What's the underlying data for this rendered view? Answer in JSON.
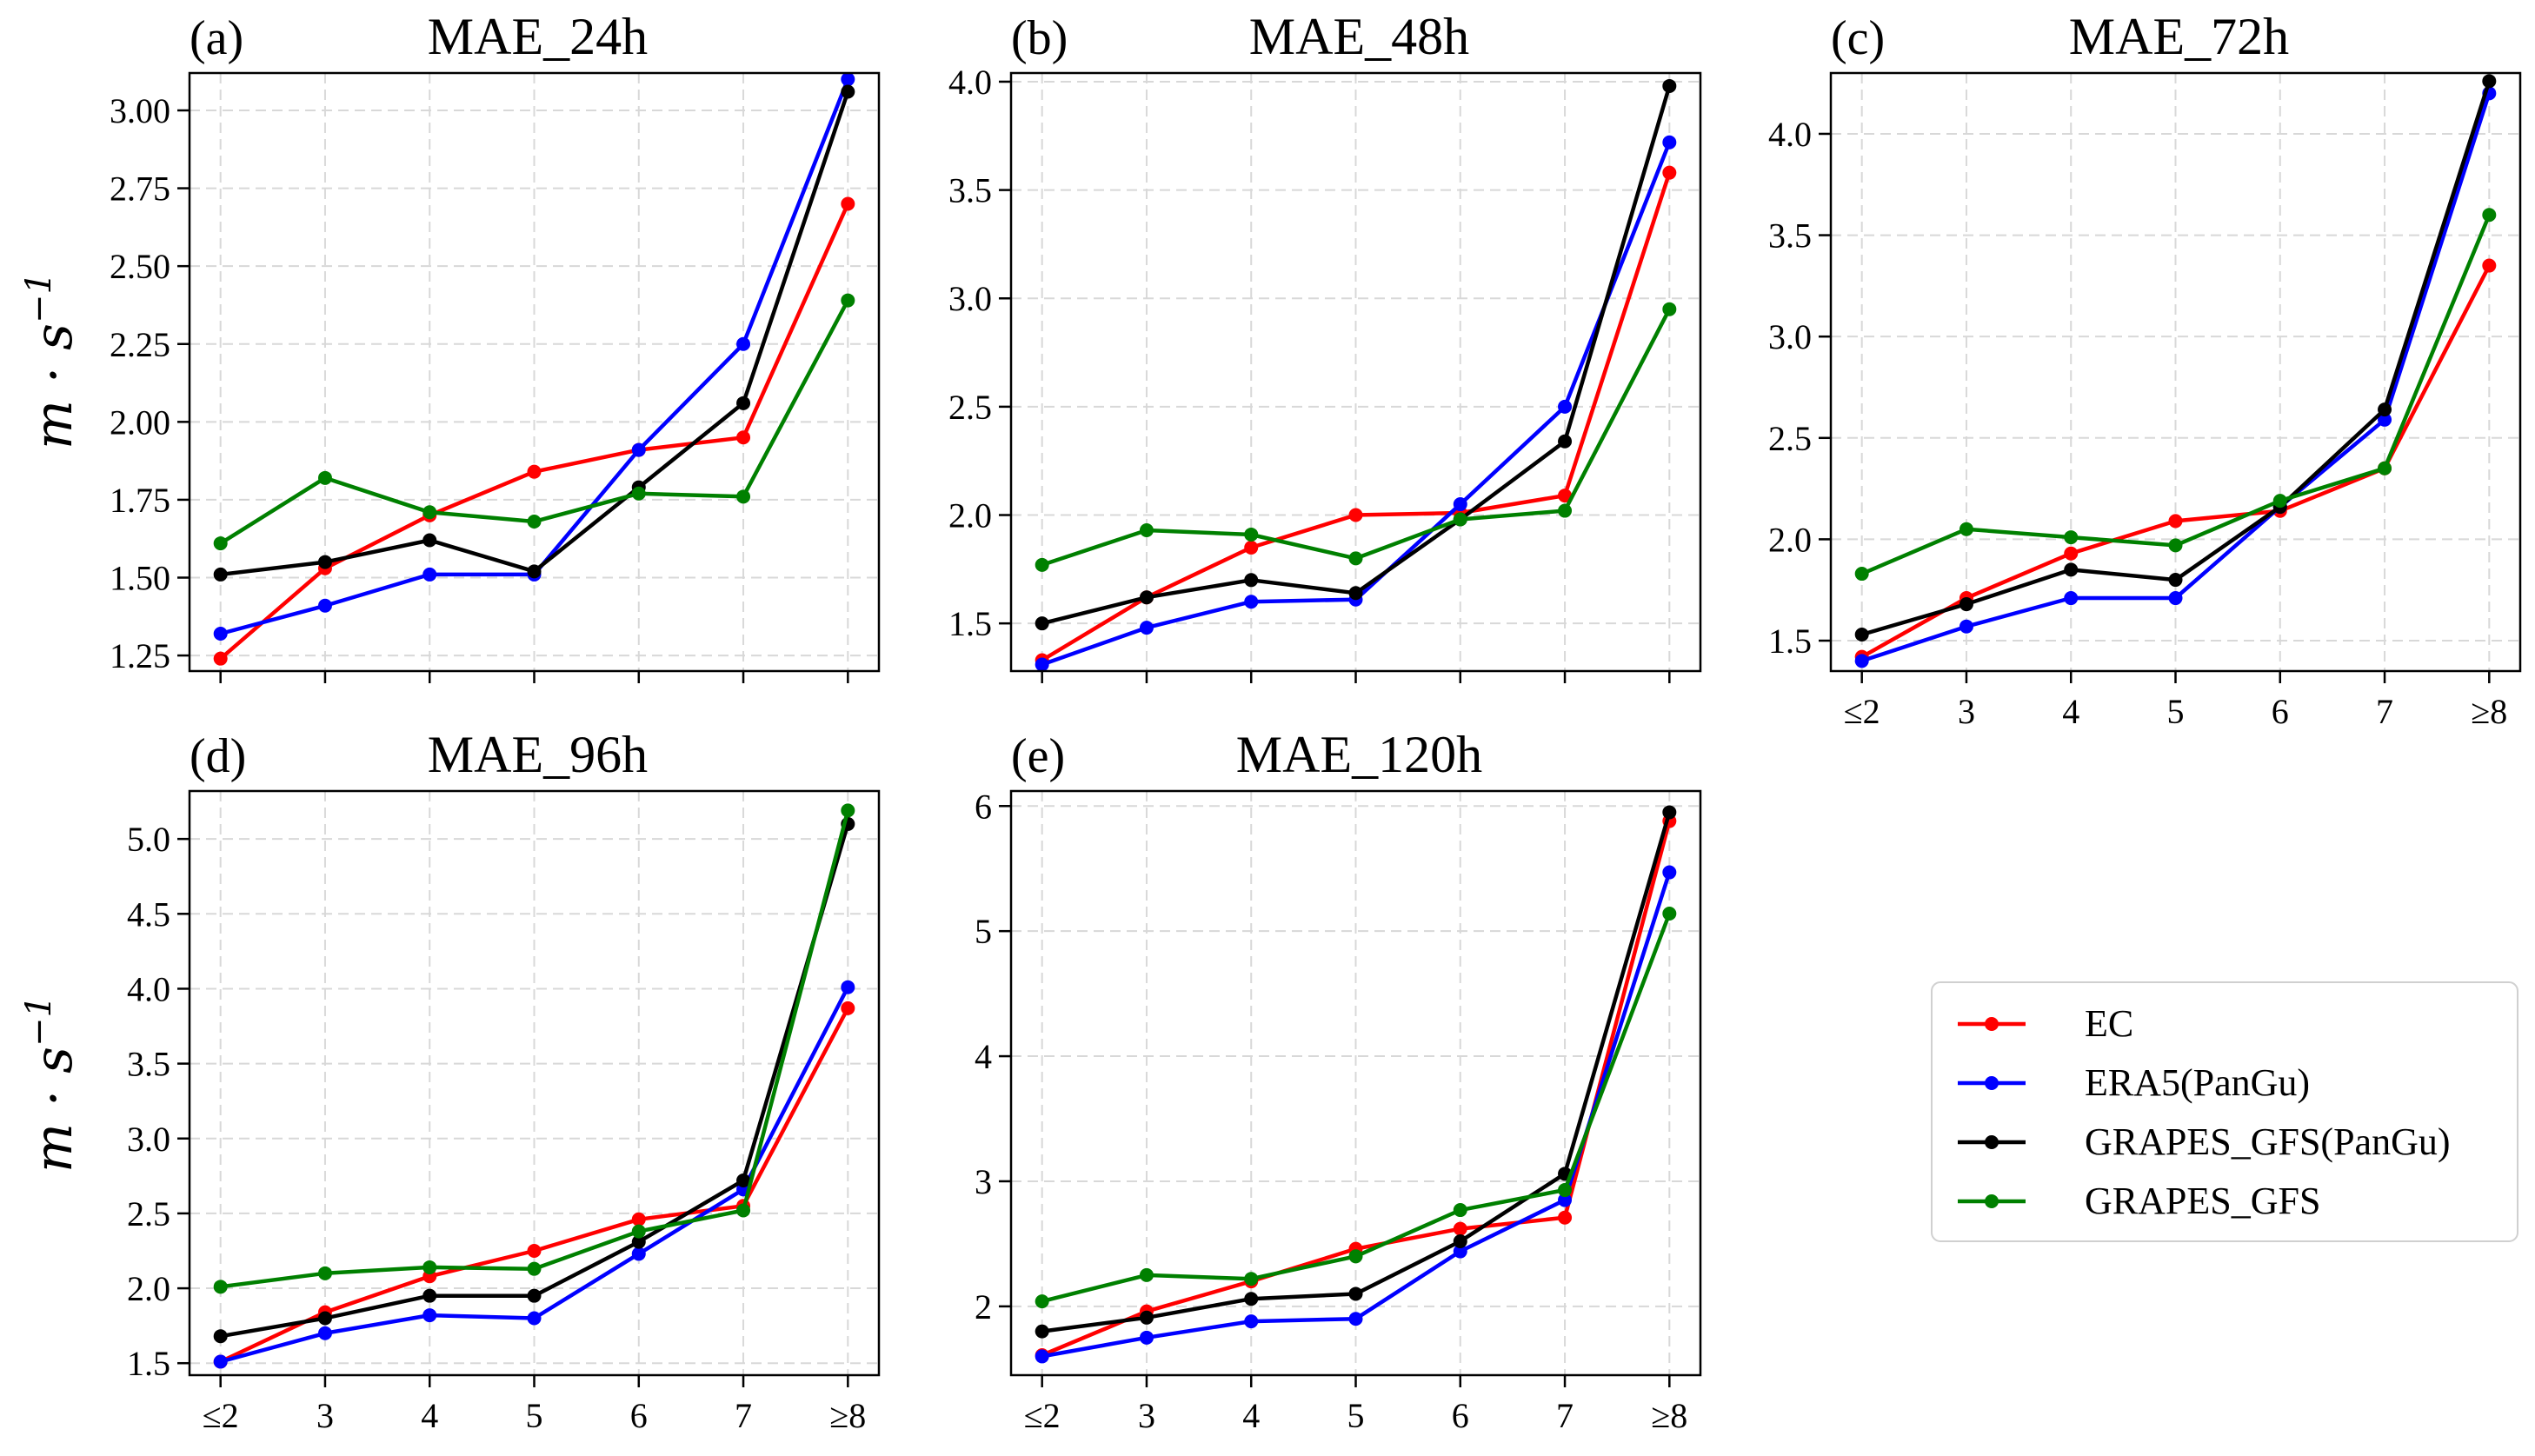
{
  "legend": {
    "placement": "lower-right",
    "entries": [
      {
        "name": "EC",
        "color": "#ff0000"
      },
      {
        "name": "ERA5(PanGu)",
        "color": "#0000ff"
      },
      {
        "name": "GRAPES_GFS(PanGu)",
        "color": "#000000"
      },
      {
        "name": "GRAPES_GFS",
        "color": "#008000"
      }
    ]
  },
  "ylabel": "m · s",
  "ylabel_sup": "−1",
  "chart_data": [
    {
      "type": "line",
      "panel": "(a)",
      "title": "MAE_24h",
      "categories": [
        "≤2",
        "3",
        "4",
        "5",
        "6",
        "7",
        "≥8"
      ],
      "show_xticklabels": false,
      "ylim": [
        1.2,
        3.12
      ],
      "yticks": [
        1.25,
        1.5,
        1.75,
        2.0,
        2.25,
        2.5,
        2.75,
        3.0
      ],
      "ytick_labels": [
        "1.25",
        "1.50",
        "1.75",
        "2.00",
        "2.25",
        "2.50",
        "2.75",
        "3.00"
      ],
      "grid": true,
      "series": [
        {
          "name": "EC",
          "color": "#ff0000",
          "values": [
            1.24,
            1.53,
            1.7,
            1.84,
            1.91,
            1.95,
            2.7
          ]
        },
        {
          "name": "ERA5(PanGu)",
          "color": "#0000ff",
          "values": [
            1.32,
            1.41,
            1.51,
            1.51,
            1.91,
            2.25,
            3.1
          ]
        },
        {
          "name": "GRAPES_GFS(PanGu)",
          "color": "#000000",
          "values": [
            1.51,
            1.55,
            1.62,
            1.52,
            1.79,
            2.06,
            3.06
          ]
        },
        {
          "name": "GRAPES_GFS",
          "color": "#008000",
          "values": [
            1.61,
            1.82,
            1.71,
            1.68,
            1.77,
            1.76,
            2.39
          ]
        }
      ]
    },
    {
      "type": "line",
      "panel": "(b)",
      "title": "MAE_48h",
      "categories": [
        "≤2",
        "3",
        "4",
        "5",
        "6",
        "7",
        "≥8"
      ],
      "show_xticklabels": false,
      "ylim": [
        1.28,
        4.04
      ],
      "yticks": [
        1.5,
        2.0,
        2.5,
        3.0,
        3.5,
        4.0
      ],
      "ytick_labels": [
        "1.5",
        "2.0",
        "2.5",
        "3.0",
        "3.5",
        "4.0"
      ],
      "grid": true,
      "series": [
        {
          "name": "EC",
          "color": "#ff0000",
          "values": [
            1.33,
            1.62,
            1.85,
            2.0,
            2.01,
            2.09,
            3.58
          ]
        },
        {
          "name": "ERA5(PanGu)",
          "color": "#0000ff",
          "values": [
            1.31,
            1.48,
            1.6,
            1.61,
            2.05,
            2.5,
            3.72
          ]
        },
        {
          "name": "GRAPES_GFS(PanGu)",
          "color": "#000000",
          "values": [
            1.5,
            1.62,
            1.7,
            1.64,
            1.98,
            2.34,
            3.98
          ]
        },
        {
          "name": "GRAPES_GFS",
          "color": "#008000",
          "values": [
            1.77,
            1.93,
            1.91,
            1.8,
            1.98,
            2.02,
            2.95
          ]
        }
      ]
    },
    {
      "type": "line",
      "panel": "(c)",
      "title": "MAE_72h",
      "categories": [
        "≤2",
        "3",
        "4",
        "5",
        "6",
        "7",
        "≥8"
      ],
      "show_xticklabels": true,
      "ylim": [
        1.35,
        4.3
      ],
      "yticks": [
        1.5,
        2.0,
        2.5,
        3.0,
        3.5,
        4.0
      ],
      "ytick_labels": [
        "1.5",
        "2.0",
        "2.5",
        "3.0",
        "3.5",
        "4.0"
      ],
      "grid": true,
      "series": [
        {
          "name": "EC",
          "color": "#ff0000",
          "values": [
            1.42,
            1.71,
            1.93,
            2.09,
            2.14,
            2.35,
            3.35
          ]
        },
        {
          "name": "ERA5(PanGu)",
          "color": "#0000ff",
          "values": [
            1.4,
            1.57,
            1.71,
            1.71,
            2.16,
            2.59,
            4.2
          ]
        },
        {
          "name": "GRAPES_GFS(PanGu)",
          "color": "#000000",
          "values": [
            1.53,
            1.68,
            1.85,
            1.8,
            2.16,
            2.64,
            4.26
          ]
        },
        {
          "name": "GRAPES_GFS",
          "color": "#008000",
          "values": [
            1.83,
            2.05,
            2.01,
            1.97,
            2.19,
            2.35,
            3.6
          ]
        }
      ]
    },
    {
      "type": "line",
      "panel": "(d)",
      "title": "MAE_96h",
      "categories": [
        "≤2",
        "3",
        "4",
        "5",
        "6",
        "7",
        "≥8"
      ],
      "show_xticklabels": true,
      "ylim": [
        1.42,
        5.32
      ],
      "yticks": [
        1.5,
        2.0,
        2.5,
        3.0,
        3.5,
        4.0,
        4.5,
        5.0
      ],
      "ytick_labels": [
        "1.5",
        "2.0",
        "2.5",
        "3.0",
        "3.5",
        "4.0",
        "4.5",
        "5.0"
      ],
      "grid": true,
      "series": [
        {
          "name": "EC",
          "color": "#ff0000",
          "values": [
            1.51,
            1.84,
            2.08,
            2.25,
            2.46,
            2.55,
            3.87
          ]
        },
        {
          "name": "ERA5(PanGu)",
          "color": "#0000ff",
          "values": [
            1.51,
            1.7,
            1.82,
            1.8,
            2.23,
            2.66,
            4.01
          ]
        },
        {
          "name": "GRAPES_GFS(PanGu)",
          "color": "#000000",
          "values": [
            1.68,
            1.8,
            1.95,
            1.95,
            2.31,
            2.72,
            5.1
          ]
        },
        {
          "name": "GRAPES_GFS",
          "color": "#008000",
          "values": [
            2.01,
            2.1,
            2.14,
            2.13,
            2.38,
            2.52,
            5.19
          ]
        }
      ]
    },
    {
      "type": "line",
      "panel": "(e)",
      "title": "MAE_120h",
      "categories": [
        "≤2",
        "3",
        "4",
        "5",
        "6",
        "7",
        "≥8"
      ],
      "show_xticklabels": true,
      "ylim": [
        1.45,
        6.12
      ],
      "yticks": [
        2,
        3,
        4,
        5,
        6
      ],
      "ytick_labels": [
        "2",
        "3",
        "4",
        "5",
        "6"
      ],
      "grid": true,
      "series": [
        {
          "name": "EC",
          "color": "#ff0000",
          "values": [
            1.61,
            1.96,
            2.2,
            2.46,
            2.62,
            2.71,
            5.88
          ]
        },
        {
          "name": "ERA5(PanGu)",
          "color": "#0000ff",
          "values": [
            1.6,
            1.75,
            1.88,
            1.9,
            2.44,
            2.85,
            5.47
          ]
        },
        {
          "name": "GRAPES_GFS(PanGu)",
          "color": "#000000",
          "values": [
            1.8,
            1.91,
            2.06,
            2.1,
            2.52,
            3.06,
            5.95
          ]
        },
        {
          "name": "GRAPES_GFS",
          "color": "#008000",
          "values": [
            2.04,
            2.25,
            2.22,
            2.4,
            2.77,
            2.93,
            5.14
          ]
        }
      ]
    }
  ]
}
